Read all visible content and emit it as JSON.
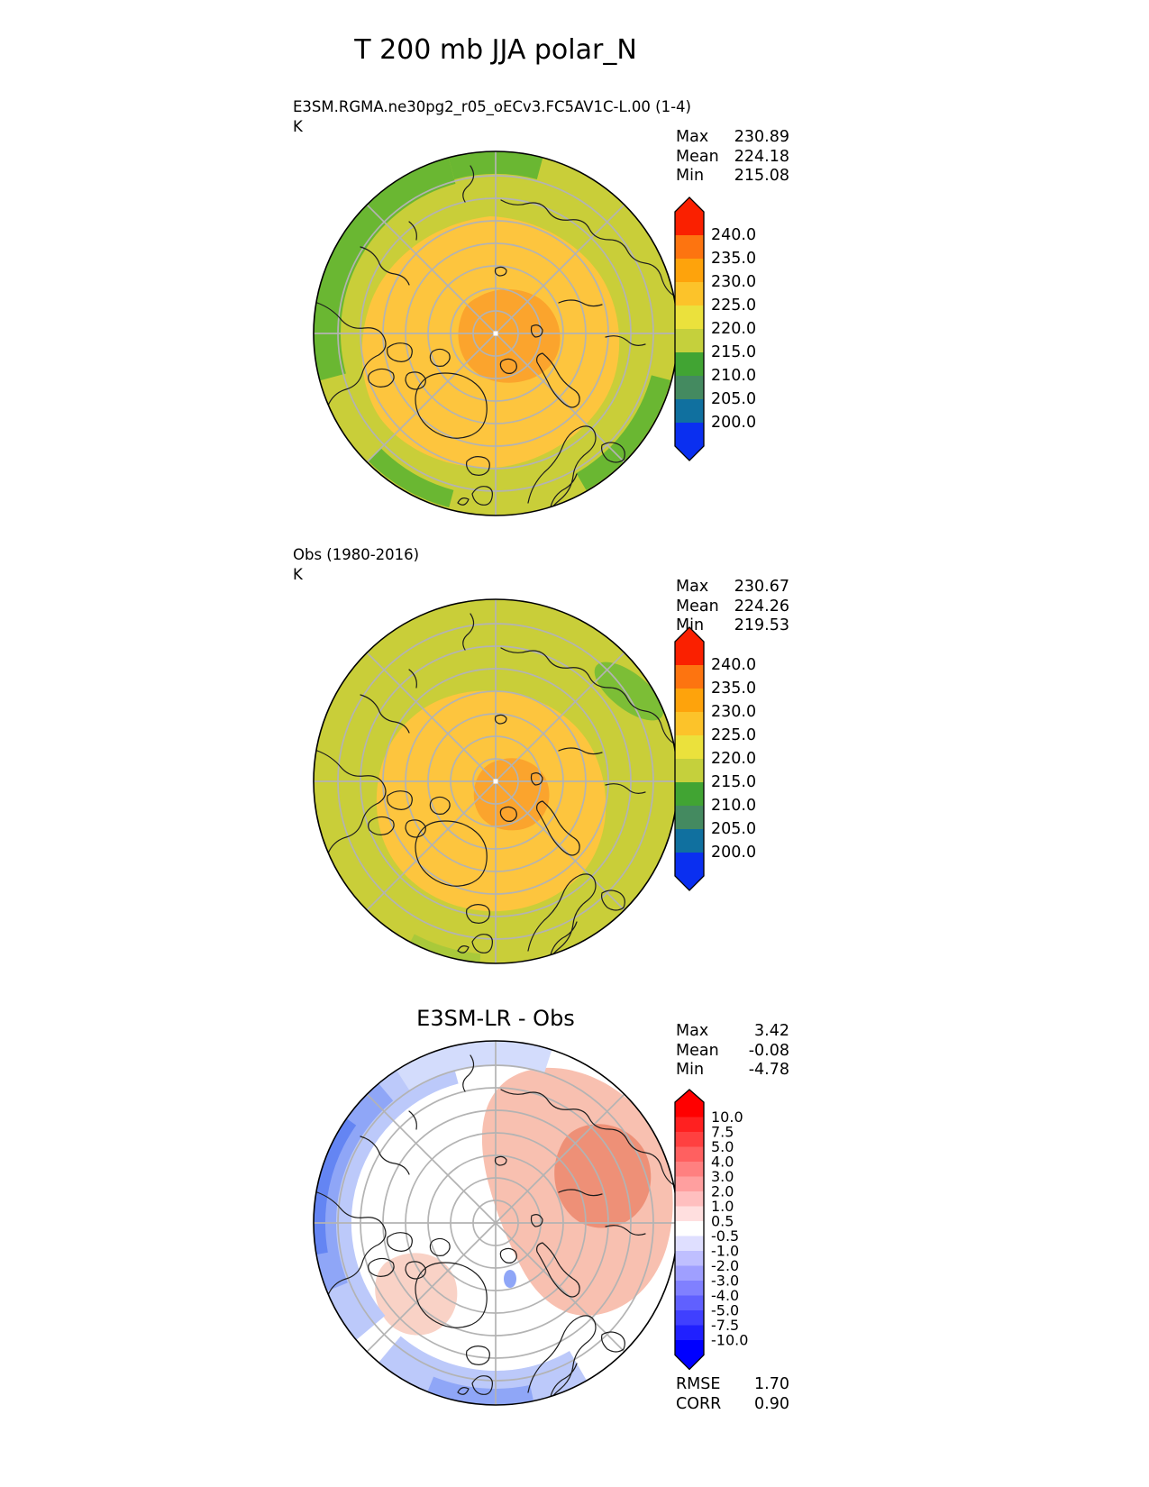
{
  "page_title": "T 200 mb JJA polar_N",
  "panels": [
    {
      "subtitle": "E3SM.RGMA.ne30pg2_r05_oECv3.FC5AV1C-L.00 (1-4)",
      "units": "K",
      "stats": [
        {
          "label": "Max",
          "value": "230.89"
        },
        {
          "label": "Mean",
          "value": "224.18"
        },
        {
          "label": "Min",
          "value": "215.08"
        }
      ],
      "colorbar": {
        "labels": [
          "240.0",
          "235.0",
          "230.0",
          "225.0",
          "220.0",
          "215.0",
          "210.0",
          "205.0",
          "200.0"
        ],
        "colors": [
          "#fa2000",
          "#fd7410",
          "#fea30c",
          "#fcc32a",
          "#ebe13c",
          "#c5d03c",
          "#41a433",
          "#448a60",
          "#10709f",
          "#0a2ff0"
        ]
      },
      "map_colors": {
        "background": "#c9ce39",
        "rim_patches": "#6ab732",
        "band_mid": "#fdc53e",
        "band_core": "#fba42d"
      }
    },
    {
      "subtitle": "Obs (1980-2016)",
      "units": "K",
      "stats": [
        {
          "label": "Max",
          "value": "230.67"
        },
        {
          "label": "Mean",
          "value": "224.26"
        },
        {
          "label": "Min",
          "value": "219.53"
        }
      ],
      "colorbar": {
        "labels": [
          "240.0",
          "235.0",
          "230.0",
          "225.0",
          "220.0",
          "215.0",
          "210.0",
          "205.0",
          "200.0"
        ],
        "colors": [
          "#fa2000",
          "#fd7410",
          "#fea30c",
          "#fcc32a",
          "#ebe13c",
          "#c5d03c",
          "#41a433",
          "#448a60",
          "#10709f",
          "#0a2ff0"
        ]
      },
      "map_colors": {
        "background": "#c9ce39",
        "rim_patches": "#7cbe36",
        "rim_edge": "#a9c93a",
        "band_mid": "#fdc53e",
        "band_core": "#fba42d"
      }
    },
    {
      "subtitle": "E3SM-LR - Obs",
      "stats": [
        {
          "label": "Max",
          "value": "3.42"
        },
        {
          "label": "Mean",
          "value": "-0.08"
        },
        {
          "label": "Min",
          "value": "-4.78"
        }
      ],
      "colorbar": {
        "labels": [
          "10.0",
          "7.5",
          "5.0",
          "4.0",
          "3.0",
          "2.0",
          "1.0",
          "0.5",
          "-0.5",
          "-1.0",
          "-2.0",
          "-3.0",
          "-4.0",
          "-5.0",
          "-7.5",
          "-10.0"
        ],
        "colors": [
          "#ff0000",
          "#ff2020",
          "#ff4040",
          "#ff6060",
          "#ff8080",
          "#ff9f9f",
          "#ffbfbf",
          "#ffdfdf",
          "#ffffff",
          "#dfdfff",
          "#bfbfff",
          "#9f9fff",
          "#8080ff",
          "#6060ff",
          "#4040ff",
          "#2020ff",
          "#0000ff"
        ]
      },
      "metrics": [
        {
          "label": "RMSE",
          "value": "1.70"
        },
        {
          "label": "CORR",
          "value": "0.90"
        }
      ],
      "map_colors": {
        "background": "#ffffff",
        "pink_light": "#f8c0b0",
        "pink_core": "#ee9077",
        "pink_soft": "#f9d2c6",
        "blue_light": "#bcc9fa",
        "blue_mid": "#8fa6f7",
        "blue_deep": "#6485f3",
        "blue_soft": "#d3dcfc",
        "island_blue": "#8fa6f7"
      }
    }
  ],
  "chart_data": [
    {
      "type": "heatmap",
      "subtype": "polar_contour_map",
      "projection": "north_polar_stereographic",
      "title": "E3SM.RGMA.ne30pg2_r05_oECv3.FC5AV1C-L.00 (1-4)",
      "figure_title": "T 200 mb JJA polar_N",
      "units": "K",
      "stats": {
        "max": 230.89,
        "mean": 224.18,
        "min": 215.08
      },
      "contour_levels": [
        200.0,
        205.0,
        210.0,
        215.0,
        220.0,
        225.0,
        230.0,
        235.0,
        240.0
      ],
      "colormap": [
        "#fa2000",
        "#fd7410",
        "#fea30c",
        "#fcc32a",
        "#ebe13c",
        "#c5d03c",
        "#41a433",
        "#448a60",
        "#10709f",
        "#0a2ff0"
      ],
      "legend_position": "right"
    },
    {
      "type": "heatmap",
      "subtype": "polar_contour_map",
      "projection": "north_polar_stereographic",
      "title": "Obs (1980-2016)",
      "units": "K",
      "stats": {
        "max": 230.67,
        "mean": 224.26,
        "min": 219.53
      },
      "contour_levels": [
        200.0,
        205.0,
        210.0,
        215.0,
        220.0,
        225.0,
        230.0,
        235.0,
        240.0
      ],
      "colormap": [
        "#fa2000",
        "#fd7410",
        "#fea30c",
        "#fcc32a",
        "#ebe13c",
        "#c5d03c",
        "#41a433",
        "#448a60",
        "#10709f",
        "#0a2ff0"
      ],
      "legend_position": "right"
    },
    {
      "type": "heatmap",
      "subtype": "polar_contour_map_difference",
      "projection": "north_polar_stereographic",
      "title": "E3SM-LR - Obs",
      "stats": {
        "max": 3.42,
        "mean": -0.08,
        "min": -4.78,
        "rmse": 1.7,
        "corr": 0.9
      },
      "contour_levels": [
        -10.0,
        -7.5,
        -5.0,
        -4.0,
        -3.0,
        -2.0,
        -1.0,
        -0.5,
        0.5,
        1.0,
        2.0,
        3.0,
        4.0,
        5.0,
        7.5,
        10.0
      ],
      "colormap": [
        "#ff0000",
        "#ff2020",
        "#ff4040",
        "#ff6060",
        "#ff8080",
        "#ff9f9f",
        "#ffbfbf",
        "#ffdfdf",
        "#ffffff",
        "#dfdfff",
        "#bfbfff",
        "#9f9fff",
        "#8080ff",
        "#6060ff",
        "#4040ff",
        "#2020ff",
        "#0000ff"
      ],
      "legend_position": "right"
    }
  ]
}
